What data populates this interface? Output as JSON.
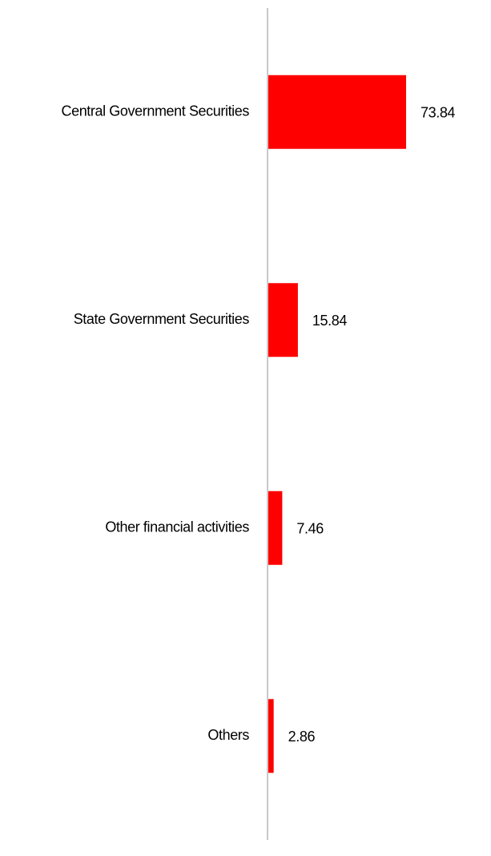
{
  "chart_data": {
    "type": "hbar",
    "categories": [
      "Central Government Securities",
      "State Government Securities",
      "Other financial activities",
      "Others"
    ],
    "values": [
      73.84,
      15.84,
      7.46,
      2.86
    ],
    "color": "#ff0000"
  }
}
